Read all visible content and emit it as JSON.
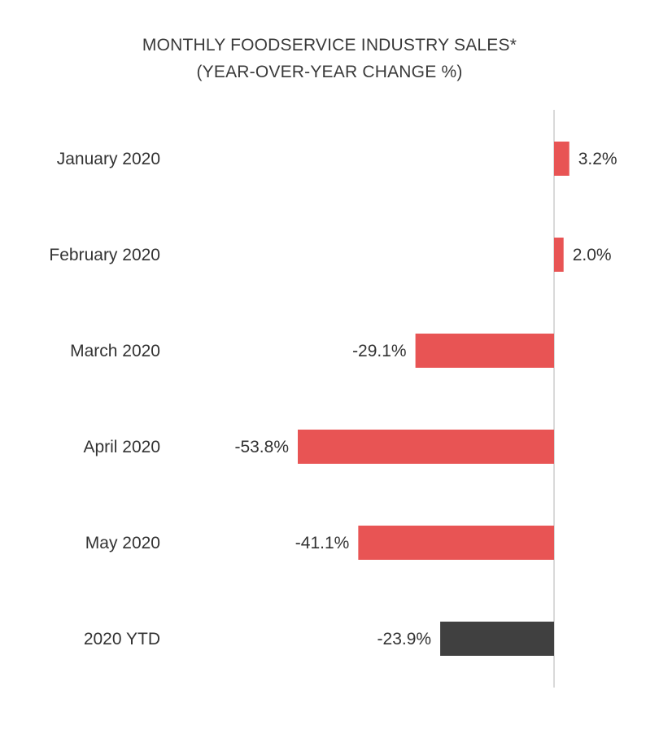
{
  "chart_data": {
    "type": "bar",
    "orientation": "horizontal",
    "title": "MONTHLY FOODSERVICE INDUSTRY SALES*",
    "subtitle": "(YEAR-OVER-YEAR CHANGE %)",
    "categories": [
      "January 2020",
      "February 2020",
      "March 2020",
      "April 2020",
      "May 2020",
      "2020 YTD"
    ],
    "values": [
      3.2,
      2.0,
      -29.1,
      -53.8,
      -41.1,
      -23.9
    ],
    "data_labels": [
      "3.2%",
      "2.0%",
      "-29.1%",
      "-53.8%",
      "-41.1%",
      "-23.9%"
    ],
    "bar_colors": [
      "#e85454",
      "#e85454",
      "#e85454",
      "#e85454",
      "#e85454",
      "#404040"
    ],
    "xlim": [
      -54,
      3.5
    ],
    "grid": false,
    "legend": "none"
  }
}
